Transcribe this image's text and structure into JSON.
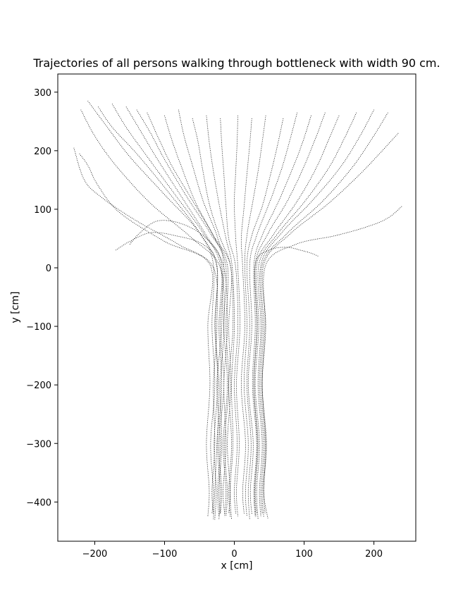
{
  "chart_data": {
    "type": "line",
    "title": "Trajectories of all persons walking through bottleneck with width 90 cm.",
    "xlabel": "x [cm]",
    "ylabel": "y [cm]",
    "xlim": [
      -253,
      260
    ],
    "ylim": [
      -467,
      331
    ],
    "xticks": [
      -200,
      -100,
      0,
      100,
      200
    ],
    "yticks": [
      -400,
      -300,
      -200,
      -100,
      0,
      100,
      200,
      300
    ],
    "xticklabels": [
      "−200",
      "−100",
      "0",
      "100",
      "200"
    ],
    "yticklabels": [
      "−400",
      "−300",
      "−200",
      "−100",
      "0",
      "100",
      "200",
      "300"
    ],
    "grid": false,
    "line_style": "dotted",
    "line_color": "#000000",
    "bottleneck_width_cm": 90,
    "series": [
      {
        "x": [
          -230,
          -215,
          -190,
          -140,
          -80,
          -30,
          -25,
          -30,
          -28,
          -32,
          -30
        ],
        "y": [
          205,
          150,
          120,
          80,
          40,
          0,
          -100,
          -200,
          -300,
          -380,
          -420
        ]
      },
      {
        "x": [
          -222,
          -210,
          -195,
          -165,
          -100,
          -35,
          -38,
          -35,
          -40,
          -36,
          -38
        ],
        "y": [
          195,
          175,
          140,
          95,
          45,
          5,
          -100,
          -200,
          -300,
          -380,
          -425
        ]
      },
      {
        "x": [
          -220,
          -200,
          -170,
          -120,
          -60,
          -20,
          -15,
          -20,
          -18,
          -22,
          -20
        ],
        "y": [
          270,
          225,
          175,
          110,
          50,
          0,
          -100,
          -200,
          -300,
          -380,
          -420
        ]
      },
      {
        "x": [
          -210,
          -185,
          -150,
          -100,
          -50,
          -25,
          -28,
          -22,
          -25,
          -28,
          -30
        ],
        "y": [
          285,
          245,
          190,
          125,
          60,
          0,
          -100,
          -200,
          -300,
          -380,
          -430
        ]
      },
      {
        "x": [
          -195,
          -175,
          -140,
          -95,
          -50,
          -30,
          -32,
          -28,
          -34,
          -30,
          -32
        ],
        "y": [
          275,
          240,
          195,
          130,
          60,
          5,
          -100,
          -200,
          -300,
          -380,
          -420
        ]
      },
      {
        "x": [
          -175,
          -155,
          -125,
          -85,
          -45,
          -20,
          -18,
          -25,
          -20,
          -24,
          -22
        ],
        "y": [
          280,
          240,
          190,
          125,
          60,
          5,
          -100,
          -200,
          -300,
          -380,
          -425
        ]
      },
      {
        "x": [
          -155,
          -135,
          -110,
          -75,
          -40,
          -15,
          -10,
          -15,
          -12,
          -16,
          -14
        ],
        "y": [
          275,
          235,
          185,
          120,
          55,
          0,
          -100,
          -200,
          -300,
          -380,
          -420
        ]
      },
      {
        "x": [
          -150,
          -135,
          -110,
          -75,
          -40,
          -18,
          -22,
          -18,
          -24,
          -20,
          -22
        ],
        "y": [
          40,
          60,
          80,
          75,
          50,
          5,
          -100,
          -200,
          -300,
          -380,
          -430
        ]
      },
      {
        "x": [
          -140,
          -120,
          -100,
          -70,
          -35,
          -10,
          -12,
          -8,
          -14,
          -10,
          -12
        ],
        "y": [
          270,
          230,
          185,
          125,
          60,
          5,
          -100,
          -200,
          -300,
          -380,
          -425
        ]
      },
      {
        "x": [
          -125,
          -110,
          -90,
          -60,
          -30,
          -5,
          -8,
          -5,
          -10,
          -6,
          -8
        ],
        "y": [
          265,
          225,
          175,
          115,
          55,
          0,
          -100,
          -200,
          -300,
          -380,
          -420
        ]
      },
      {
        "x": [
          -100,
          -90,
          -75,
          -55,
          -28,
          -12,
          -15,
          -10,
          -16,
          -12,
          -14
        ],
        "y": [
          260,
          220,
          170,
          110,
          50,
          0,
          -100,
          -200,
          -300,
          -380,
          -425
        ]
      },
      {
        "x": [
          -80,
          -72,
          -60,
          -45,
          -25,
          -15,
          -20,
          -15,
          -22,
          -18,
          -20
        ],
        "y": [
          270,
          225,
          175,
          115,
          55,
          0,
          -100,
          -200,
          -300,
          -380,
          -420
        ]
      },
      {
        "x": [
          -60,
          -52,
          -45,
          -35,
          -20,
          -5,
          -2,
          -8,
          -4,
          -8,
          -6
        ],
        "y": [
          255,
          215,
          165,
          105,
          50,
          0,
          -100,
          -200,
          -300,
          -380,
          -425
        ]
      },
      {
        "x": [
          -40,
          -36,
          -30,
          -22,
          -12,
          -3,
          0,
          -4,
          -2,
          -6,
          -4
        ],
        "y": [
          260,
          215,
          165,
          110,
          50,
          0,
          -100,
          -200,
          -300,
          -380,
          -430
        ]
      },
      {
        "x": [
          -20,
          -18,
          -15,
          -12,
          -8,
          2,
          5,
          0,
          4,
          0,
          2
        ],
        "y": [
          255,
          210,
          160,
          105,
          50,
          0,
          -100,
          -200,
          -300,
          -380,
          -420
        ]
      },
      {
        "x": [
          5,
          4,
          2,
          0,
          2,
          5,
          8,
          3,
          7,
          3,
          5
        ],
        "y": [
          260,
          215,
          165,
          110,
          50,
          0,
          -100,
          -200,
          -300,
          -380,
          -425
        ]
      },
      {
        "x": [
          25,
          22,
          18,
          14,
          10,
          12,
          15,
          10,
          16,
          12,
          14
        ],
        "y": [
          255,
          210,
          160,
          105,
          50,
          0,
          -100,
          -200,
          -300,
          -380,
          -420
        ]
      },
      {
        "x": [
          45,
          40,
          34,
          26,
          18,
          15,
          18,
          14,
          20,
          16,
          18
        ],
        "y": [
          260,
          215,
          165,
          110,
          55,
          5,
          -100,
          -200,
          -300,
          -380,
          -425
        ]
      },
      {
        "x": [
          70,
          62,
          52,
          40,
          25,
          18,
          22,
          18,
          24,
          20,
          22
        ],
        "y": [
          255,
          210,
          160,
          105,
          55,
          5,
          -100,
          -200,
          -300,
          -380,
          -430
        ]
      },
      {
        "x": [
          90,
          80,
          68,
          50,
          32,
          22,
          25,
          20,
          27,
          23,
          25
        ],
        "y": [
          265,
          220,
          170,
          110,
          55,
          5,
          -100,
          -200,
          -300,
          -380,
          -420
        ]
      },
      {
        "x": [
          110,
          98,
          82,
          62,
          40,
          28,
          30,
          26,
          32,
          28,
          30
        ],
        "y": [
          260,
          215,
          165,
          110,
          55,
          5,
          -100,
          -200,
          -300,
          -380,
          -425
        ]
      },
      {
        "x": [
          130,
          116,
          98,
          75,
          48,
          30,
          33,
          28,
          34,
          30,
          32
        ],
        "y": [
          265,
          220,
          168,
          112,
          58,
          5,
          -100,
          -200,
          -300,
          -380,
          -420
        ]
      },
      {
        "x": [
          150,
          135,
          115,
          88,
          55,
          32,
          35,
          30,
          36,
          32,
          34
        ],
        "y": [
          260,
          218,
          165,
          110,
          55,
          5,
          -100,
          -200,
          -300,
          -380,
          -430
        ]
      },
      {
        "x": [
          175,
          158,
          135,
          100,
          62,
          35,
          38,
          34,
          40,
          36,
          38
        ],
        "y": [
          265,
          222,
          170,
          112,
          58,
          5,
          -100,
          -200,
          -300,
          -380,
          -425
        ]
      },
      {
        "x": [
          200,
          180,
          152,
          112,
          68,
          38,
          40,
          36,
          42,
          38,
          40
        ],
        "y": [
          270,
          225,
          172,
          115,
          60,
          5,
          -100,
          -200,
          -300,
          -380,
          -420
        ]
      },
      {
        "x": [
          220,
          198,
          168,
          125,
          75,
          40,
          42,
          38,
          44,
          40,
          42
        ],
        "y": [
          265,
          222,
          170,
          112,
          58,
          5,
          -100,
          -200,
          -300,
          -380,
          -425
        ]
      },
      {
        "x": [
          235,
          212,
          180,
          135,
          80,
          42,
          45,
          40,
          46,
          42,
          48
        ],
        "y": [
          230,
          200,
          160,
          110,
          58,
          5,
          -100,
          -200,
          -300,
          -380,
          -428
        ]
      },
      {
        "x": [
          240,
          220,
          190,
          145,
          88,
          45,
          44,
          40,
          45,
          42,
          44
        ],
        "y": [
          105,
          85,
          70,
          55,
          40,
          5,
          -100,
          -200,
          -300,
          -380,
          -420
        ]
      },
      {
        "x": [
          120,
          110,
          95,
          75,
          50,
          30,
          32,
          28,
          33,
          29,
          31
        ],
        "y": [
          20,
          25,
          30,
          35,
          30,
          5,
          -100,
          -200,
          -300,
          -380,
          -425
        ]
      },
      {
        "x": [
          -170,
          -150,
          -120,
          -85,
          -45,
          -25,
          -27,
          -24,
          -29,
          -26,
          -28
        ],
        "y": [
          30,
          45,
          60,
          55,
          40,
          5,
          -100,
          -200,
          -300,
          -380,
          -430
        ]
      }
    ]
  }
}
